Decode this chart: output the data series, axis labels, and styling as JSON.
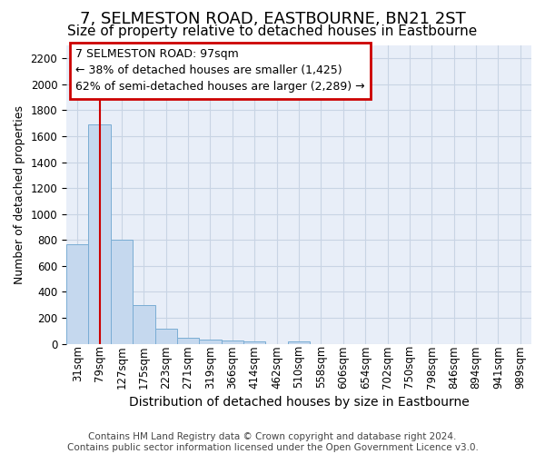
{
  "title": "7, SELMESTON ROAD, EASTBOURNE, BN21 2ST",
  "subtitle": "Size of property relative to detached houses in Eastbourne",
  "xlabel": "Distribution of detached houses by size in Eastbourne",
  "ylabel": "Number of detached properties",
  "categories": [
    "31sqm",
    "79sqm",
    "127sqm",
    "175sqm",
    "223sqm",
    "271sqm",
    "319sqm",
    "366sqm",
    "414sqm",
    "462sqm",
    "510sqm",
    "558sqm",
    "606sqm",
    "654sqm",
    "702sqm",
    "750sqm",
    "798sqm",
    "846sqm",
    "894sqm",
    "941sqm",
    "989sqm"
  ],
  "values": [
    770,
    1690,
    800,
    300,
    115,
    45,
    32,
    25,
    22,
    0,
    22,
    0,
    0,
    0,
    0,
    0,
    0,
    0,
    0,
    0,
    0
  ],
  "bar_color": "#c5d8ee",
  "bar_edge_color": "#7aadd4",
  "grid_color": "#c8d4e4",
  "bg_color": "#e8eef8",
  "vline_x_index": 1,
  "vline_color": "#cc0000",
  "annotation_line1": "7 SELMESTON ROAD: 97sqm",
  "annotation_line2": "← 38% of detached houses are smaller (1,425)",
  "annotation_line3": "62% of semi-detached houses are larger (2,289) →",
  "annotation_box_color": "#cc0000",
  "annotation_bg": "#ffffff",
  "ylim": [
    0,
    2300
  ],
  "yticks": [
    0,
    200,
    400,
    600,
    800,
    1000,
    1200,
    1400,
    1600,
    1800,
    2000,
    2200
  ],
  "footer": "Contains HM Land Registry data © Crown copyright and database right 2024.\nContains public sector information licensed under the Open Government Licence v3.0.",
  "title_fontsize": 13,
  "subtitle_fontsize": 11,
  "xlabel_fontsize": 10,
  "ylabel_fontsize": 9,
  "tick_fontsize": 8.5,
  "annotation_fontsize": 9,
  "footer_fontsize": 7.5
}
